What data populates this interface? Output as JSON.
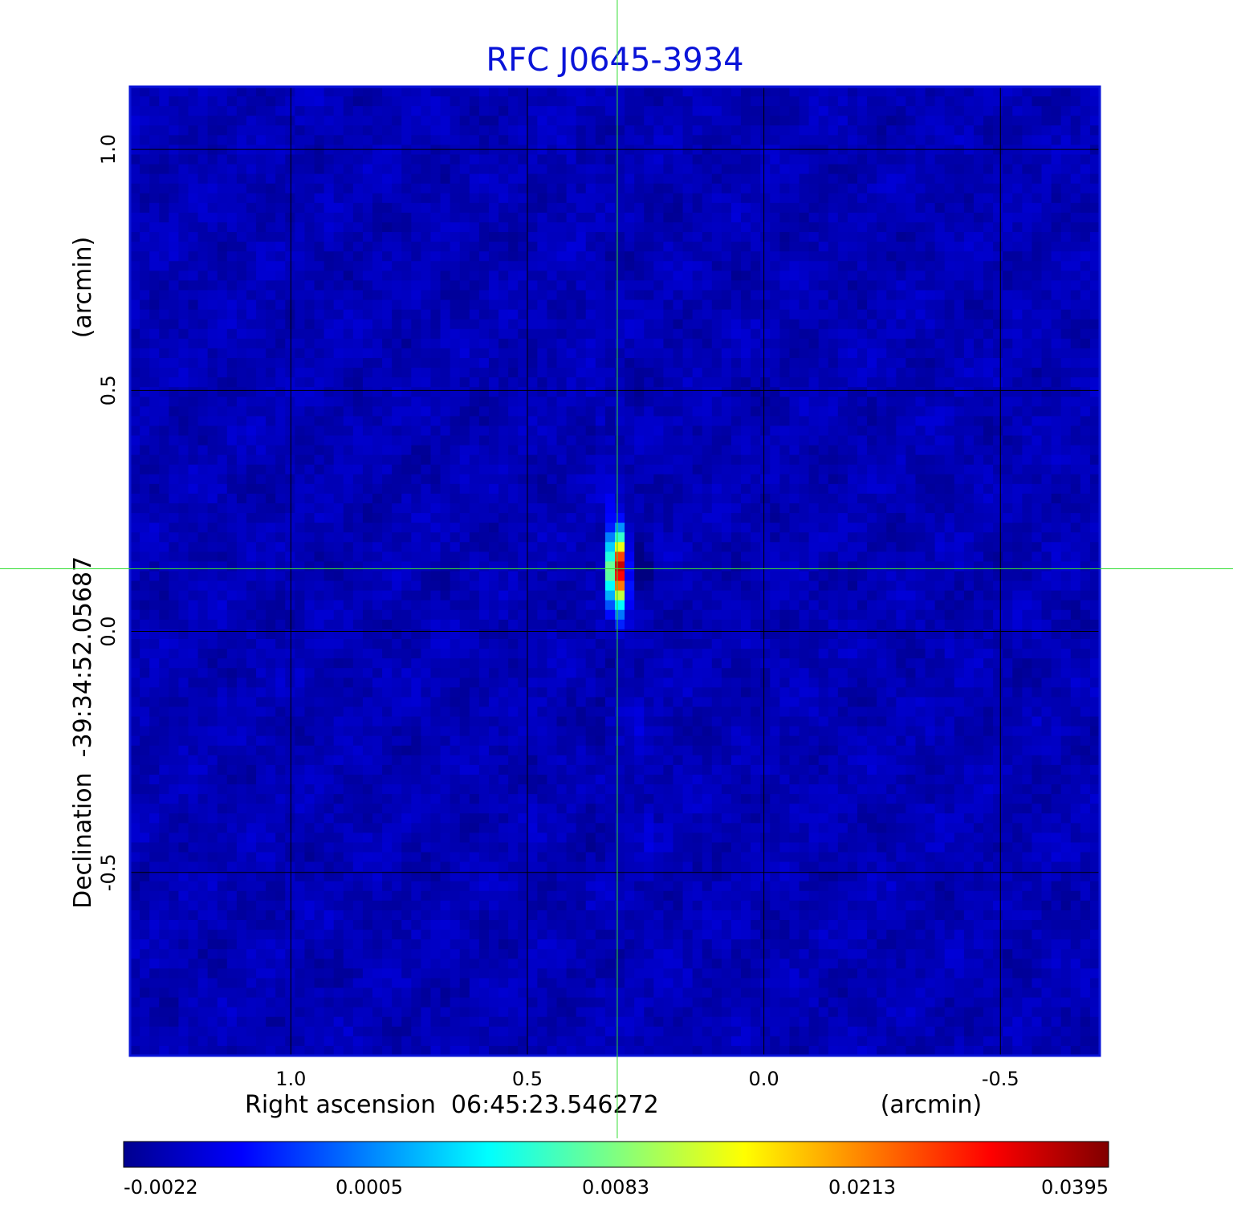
{
  "chart_data": {
    "type": "heatmap",
    "title": "RFC J0645-3934",
    "xlabel": "Right ascension  06:45:23.546272",
    "xunit": "(arcmin)",
    "ylabel": "Declination  -39:34:52.05687",
    "yunit": "(arcmin)",
    "x_ticks": [
      1.0,
      0.5,
      0.0,
      -0.5
    ],
    "x_tick_labels": [
      "1.0",
      "0.5",
      "0.0",
      "-0.5"
    ],
    "y_ticks": [
      1.0,
      0.5,
      0.0,
      -0.5
    ],
    "y_tick_labels": [
      "1.0",
      "0.5",
      "0.0",
      "-0.5"
    ],
    "xlim": [
      1.34,
      -0.71
    ],
    "ylim": [
      -0.88,
      1.13
    ],
    "grid": true,
    "colormap": "jet",
    "colorbar": {
      "ticks": [
        -0.0022,
        0.0005,
        0.0083,
        0.0213,
        0.0395
      ],
      "tick_labels": [
        "-0.0022",
        "0.0005",
        "0.0083",
        "0.0213",
        "0.0395"
      ],
      "placement": "bottom"
    },
    "crosshair": {
      "x": 0.31,
      "y": 0.13
    },
    "features": {
      "background_level": 0.0,
      "peak": {
        "x": 0.31,
        "y": 0.13,
        "value": 0.0395
      },
      "negative_lobe": {
        "x": 0.26,
        "y": 0.13,
        "value": -0.0022
      }
    },
    "colors": {
      "title": "#0a14d8",
      "frame": "#0a14d8",
      "grid": "#000000",
      "crosshair": "#33dd33"
    }
  }
}
